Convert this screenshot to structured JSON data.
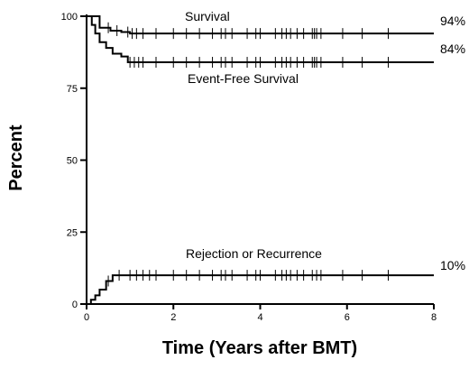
{
  "chart_data": {
    "type": "line",
    "xlabel": "Time (Years after BMT)",
    "ylabel": "Percent",
    "xlim": [
      0,
      8
    ],
    "ylim": [
      0,
      100
    ],
    "x_ticks": [
      0,
      2,
      4,
      6,
      8
    ],
    "y_ticks": [
      0,
      25,
      50,
      75,
      100
    ],
    "grid": false,
    "legend": "none",
    "series": [
      {
        "name": "Survival",
        "end_label": "94%",
        "step_x": [
          0,
          0.3,
          0.55,
          0.8,
          1.0,
          8
        ],
        "step_y": [
          100,
          96,
          95,
          94.5,
          94,
          94
        ],
        "censor_x": [
          0.5,
          0.7,
          0.95,
          1.05,
          1.15,
          1.3,
          1.6,
          2.0,
          2.3,
          2.6,
          2.9,
          3.1,
          3.2,
          3.35,
          3.7,
          3.9,
          4.0,
          4.35,
          4.5,
          4.6,
          4.7,
          4.85,
          5.0,
          5.2,
          5.25,
          5.3,
          5.4,
          5.9,
          6.35,
          6.95
        ]
      },
      {
        "name": "Event-Free Survival",
        "end_label": "84%",
        "step_x": [
          0,
          0.12,
          0.2,
          0.3,
          0.45,
          0.6,
          0.8,
          0.95,
          8
        ],
        "step_y": [
          100,
          97,
          94,
          91,
          89,
          87,
          86,
          84,
          84
        ],
        "censor_x": [
          1.0,
          1.1,
          1.2,
          1.3,
          1.6,
          2.0,
          2.3,
          2.6,
          2.9,
          3.1,
          3.2,
          3.35,
          3.7,
          3.9,
          4.0,
          4.35,
          4.5,
          4.6,
          4.7,
          4.85,
          5.0,
          5.2,
          5.25,
          5.3,
          5.4,
          5.9,
          6.35,
          6.95
        ]
      },
      {
        "name": "Rejection or Recurrence",
        "end_label": "10%",
        "step_x": [
          0,
          0.1,
          0.2,
          0.3,
          0.45,
          0.6,
          8
        ],
        "step_y": [
          0,
          1.5,
          3,
          5,
          8,
          10,
          10
        ],
        "censor_x": [
          0.5,
          0.75,
          1.0,
          1.15,
          1.3,
          1.45,
          1.6,
          2.0,
          2.3,
          2.6,
          2.9,
          3.1,
          3.2,
          3.35,
          3.7,
          3.9,
          4.0,
          4.35,
          4.5,
          4.6,
          4.7,
          4.85,
          5.0,
          5.2,
          5.3,
          5.4,
          5.9,
          6.35,
          6.95
        ]
      }
    ]
  }
}
